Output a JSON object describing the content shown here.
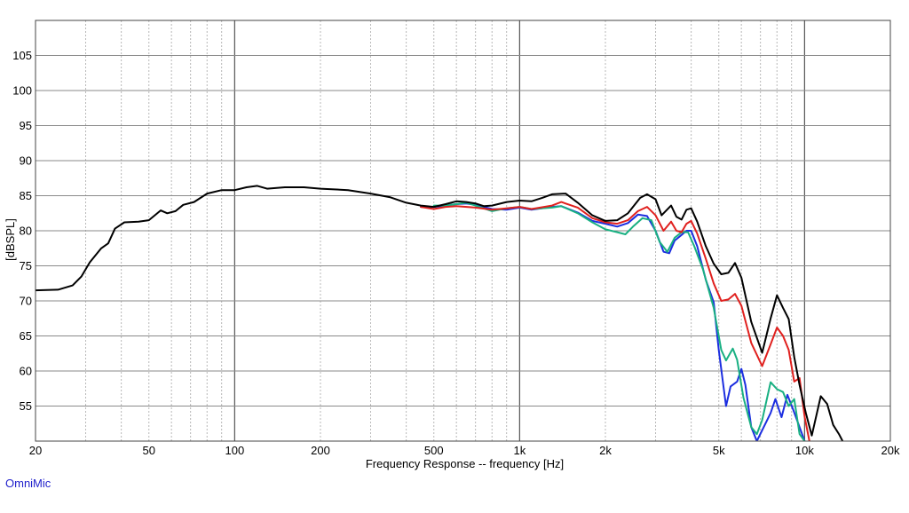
{
  "chart_data": {
    "type": "line",
    "title": "",
    "xlabel": "Frequency Response -- frequency [Hz]",
    "ylabel": "[dBSPL]",
    "x_scale": "log",
    "xlim": [
      20,
      20000
    ],
    "ylim": [
      50,
      110
    ],
    "grid": true,
    "x_ticks": [
      20,
      50,
      100,
      200,
      500,
      1000,
      2000,
      5000,
      10000,
      20000
    ],
    "x_tick_labels": [
      "20",
      "50",
      "100",
      "200",
      "500",
      "1k",
      "2k",
      "5k",
      "10k",
      "20k"
    ],
    "y_ticks": [
      55,
      60,
      65,
      70,
      75,
      80,
      85,
      90,
      95,
      100,
      105
    ],
    "y_tick_labels": [
      "55",
      "60",
      "65",
      "70",
      "75",
      "80",
      "85",
      "90",
      "95",
      "100",
      "105"
    ],
    "series": [
      {
        "color": "#000000",
        "points": [
          [
            20,
            71.5
          ],
          [
            24,
            71.6
          ],
          [
            27,
            72.2
          ],
          [
            29,
            73.5
          ],
          [
            31,
            75.5
          ],
          [
            34,
            77.5
          ],
          [
            36,
            78.2
          ],
          [
            38,
            80.3
          ],
          [
            41,
            81.2
          ],
          [
            46,
            81.3
          ],
          [
            50,
            81.5
          ],
          [
            55,
            82.9
          ],
          [
            58,
            82.5
          ],
          [
            62,
            82.8
          ],
          [
            66,
            83.7
          ],
          [
            72,
            84.1
          ],
          [
            80,
            85.3
          ],
          [
            90,
            85.8
          ],
          [
            100,
            85.8
          ],
          [
            110,
            86.2
          ],
          [
            120,
            86.4
          ],
          [
            130,
            86.0
          ],
          [
            150,
            86.2
          ],
          [
            175,
            86.2
          ],
          [
            200,
            86.0
          ],
          [
            250,
            85.8
          ],
          [
            300,
            85.3
          ],
          [
            350,
            84.8
          ],
          [
            400,
            84.0
          ],
          [
            450,
            83.6
          ],
          [
            500,
            83.4
          ],
          [
            550,
            83.8
          ],
          [
            600,
            84.2
          ],
          [
            650,
            84.1
          ],
          [
            700,
            83.9
          ],
          [
            750,
            83.5
          ],
          [
            800,
            83.6
          ],
          [
            900,
            84.1
          ],
          [
            1000,
            84.3
          ],
          [
            1100,
            84.2
          ],
          [
            1200,
            84.7
          ],
          [
            1300,
            85.2
          ],
          [
            1450,
            85.3
          ],
          [
            1600,
            84.0
          ],
          [
            1800,
            82.2
          ],
          [
            2000,
            81.4
          ],
          [
            2200,
            81.5
          ],
          [
            2400,
            82.5
          ],
          [
            2650,
            84.7
          ],
          [
            2800,
            85.2
          ],
          [
            3000,
            84.5
          ],
          [
            3150,
            82.2
          ],
          [
            3400,
            83.6
          ],
          [
            3550,
            82.0
          ],
          [
            3700,
            81.6
          ],
          [
            3850,
            83.0
          ],
          [
            4000,
            83.2
          ],
          [
            4200,
            81.3
          ],
          [
            4500,
            77.8
          ],
          [
            4800,
            75.3
          ],
          [
            5100,
            73.8
          ],
          [
            5400,
            74.0
          ],
          [
            5700,
            75.4
          ],
          [
            6000,
            73.3
          ],
          [
            6500,
            67.0
          ],
          [
            7100,
            62.6
          ],
          [
            7600,
            67.5
          ],
          [
            8000,
            70.8
          ],
          [
            8400,
            69.0
          ],
          [
            8800,
            67.4
          ],
          [
            9200,
            62.0
          ],
          [
            9600,
            58.0
          ],
          [
            10100,
            54.0
          ],
          [
            10600,
            50.8
          ],
          [
            11400,
            56.4
          ],
          [
            12000,
            55.3
          ],
          [
            12600,
            52.3
          ],
          [
            13200,
            51.0
          ],
          [
            13600,
            50.0
          ]
        ]
      },
      {
        "color": "#e0201e",
        "points": [
          [
            450,
            83.4
          ],
          [
            500,
            83.1
          ],
          [
            550,
            83.4
          ],
          [
            600,
            83.5
          ],
          [
            700,
            83.3
          ],
          [
            800,
            83.0
          ],
          [
            900,
            83.2
          ],
          [
            1000,
            83.4
          ],
          [
            1100,
            83.1
          ],
          [
            1300,
            83.6
          ],
          [
            1400,
            84.1
          ],
          [
            1600,
            83.3
          ],
          [
            1800,
            81.8
          ],
          [
            2000,
            81.2
          ],
          [
            2200,
            81.0
          ],
          [
            2400,
            81.5
          ],
          [
            2600,
            82.8
          ],
          [
            2800,
            83.4
          ],
          [
            3000,
            82.2
          ],
          [
            3200,
            80.0
          ],
          [
            3400,
            81.3
          ],
          [
            3550,
            80.0
          ],
          [
            3700,
            79.8
          ],
          [
            3850,
            81.0
          ],
          [
            4000,
            81.4
          ],
          [
            4200,
            79.6
          ],
          [
            4500,
            76.0
          ],
          [
            4800,
            72.5
          ],
          [
            5100,
            70.0
          ],
          [
            5400,
            70.2
          ],
          [
            5700,
            71.0
          ],
          [
            6000,
            69.3
          ],
          [
            6500,
            64.0
          ],
          [
            7100,
            60.7
          ],
          [
            7600,
            63.8
          ],
          [
            8000,
            66.2
          ],
          [
            8400,
            65.0
          ],
          [
            8800,
            63.0
          ],
          [
            9200,
            58.5
          ],
          [
            9600,
            59.0
          ],
          [
            10000,
            53.5
          ],
          [
            10400,
            50.0
          ]
        ]
      },
      {
        "color": "#19b082",
        "points": [
          [
            500,
            83.6
          ],
          [
            550,
            83.6
          ],
          [
            600,
            83.8
          ],
          [
            650,
            84.0
          ],
          [
            700,
            83.6
          ],
          [
            800,
            82.8
          ],
          [
            900,
            83.2
          ],
          [
            1000,
            83.4
          ],
          [
            1100,
            83.1
          ],
          [
            1300,
            83.3
          ],
          [
            1400,
            83.5
          ],
          [
            1600,
            82.5
          ],
          [
            1800,
            81.2
          ],
          [
            2000,
            80.2
          ],
          [
            2200,
            79.8
          ],
          [
            2350,
            79.5
          ],
          [
            2500,
            80.6
          ],
          [
            2700,
            81.8
          ],
          [
            2900,
            81.5
          ],
          [
            3100,
            78.4
          ],
          [
            3300,
            77.0
          ],
          [
            3500,
            79.0
          ],
          [
            3700,
            79.8
          ],
          [
            3900,
            79.8
          ],
          [
            4100,
            77.8
          ],
          [
            4400,
            74.5
          ],
          [
            4800,
            69.0
          ],
          [
            5100,
            63.0
          ],
          [
            5300,
            61.5
          ],
          [
            5600,
            63.2
          ],
          [
            5800,
            61.6
          ],
          [
            6100,
            56.2
          ],
          [
            6500,
            52.0
          ],
          [
            6800,
            51.0
          ],
          [
            7100,
            53.0
          ],
          [
            7600,
            58.4
          ],
          [
            8000,
            57.4
          ],
          [
            8400,
            57.0
          ],
          [
            8800,
            55.0
          ],
          [
            9200,
            56.0
          ],
          [
            9600,
            51.0
          ],
          [
            10000,
            50.0
          ]
        ]
      },
      {
        "color": "#1c2ee0",
        "points": [
          [
            450,
            83.4
          ],
          [
            500,
            83.4
          ],
          [
            550,
            83.6
          ],
          [
            600,
            83.8
          ],
          [
            650,
            83.9
          ],
          [
            700,
            83.7
          ],
          [
            800,
            83.1
          ],
          [
            900,
            83.0
          ],
          [
            1000,
            83.3
          ],
          [
            1100,
            83.0
          ],
          [
            1300,
            83.4
          ],
          [
            1400,
            83.5
          ],
          [
            1600,
            82.6
          ],
          [
            1800,
            81.4
          ],
          [
            2000,
            81.0
          ],
          [
            2200,
            80.6
          ],
          [
            2400,
            81.1
          ],
          [
            2600,
            82.3
          ],
          [
            2800,
            82.1
          ],
          [
            3000,
            80.0
          ],
          [
            3200,
            77.0
          ],
          [
            3350,
            76.8
          ],
          [
            3500,
            78.6
          ],
          [
            3700,
            79.4
          ],
          [
            3850,
            80.0
          ],
          [
            4000,
            80.0
          ],
          [
            4200,
            77.8
          ],
          [
            4500,
            73.0
          ],
          [
            4800,
            69.8
          ],
          [
            5000,
            63.0
          ],
          [
            5200,
            57.6
          ],
          [
            5300,
            55.0
          ],
          [
            5500,
            57.8
          ],
          [
            5800,
            58.5
          ],
          [
            6000,
            60.3
          ],
          [
            6200,
            58.0
          ],
          [
            6500,
            52.0
          ],
          [
            6800,
            50.0
          ],
          [
            7600,
            54.0
          ],
          [
            7900,
            56.0
          ],
          [
            8300,
            53.4
          ],
          [
            8700,
            56.6
          ],
          [
            9100,
            54.6
          ],
          [
            9600,
            52.0
          ],
          [
            10000,
            50.0
          ]
        ]
      }
    ]
  },
  "branding": "OmniMic"
}
